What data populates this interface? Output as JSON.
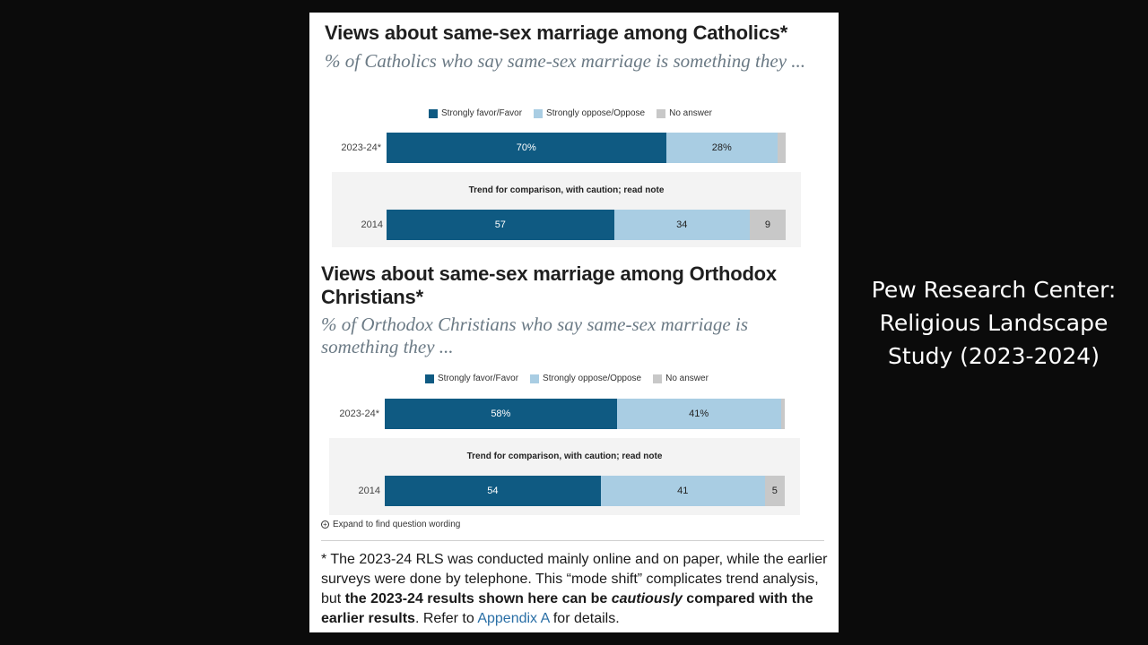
{
  "chart_data": [
    {
      "type": "bar",
      "orientation": "horizontal-stacked",
      "title": "Views about same-sex marriage among Catholics*",
      "subtitle": "% of Catholics who say same-sex marriage is something they ...",
      "legend": [
        "Strongly favor/Favor",
        "Strongly oppose/Oppose",
        "No answer"
      ],
      "trend_note": "Trend for comparison, with caution; read note",
      "categories": [
        "2023-24*",
        "2014"
      ],
      "series": [
        {
          "name": "Strongly favor/Favor",
          "values": [
            70,
            57
          ],
          "labels": [
            "70%",
            "57"
          ]
        },
        {
          "name": "Strongly oppose/Oppose",
          "values": [
            28,
            34
          ],
          "labels": [
            "28%",
            "34"
          ]
        },
        {
          "name": "No answer",
          "values": [
            2,
            9
          ],
          "labels": [
            "",
            "9"
          ]
        }
      ]
    },
    {
      "type": "bar",
      "orientation": "horizontal-stacked",
      "title": "Views about same-sex marriage among Orthodox Christians*",
      "subtitle": "% of Orthodox Christians who say same-sex marriage is something they ...",
      "legend": [
        "Strongly favor/Favor",
        "Strongly oppose/Oppose",
        "No answer"
      ],
      "trend_note": "Trend for comparison, with caution; read note",
      "categories": [
        "2023-24*",
        "2014"
      ],
      "series": [
        {
          "name": "Strongly favor/Favor",
          "values": [
            58,
            54
          ],
          "labels": [
            "58%",
            "54"
          ]
        },
        {
          "name": "Strongly oppose/Oppose",
          "values": [
            41,
            41
          ],
          "labels": [
            "41%",
            "41"
          ]
        },
        {
          "name": "No answer",
          "values": [
            1,
            5
          ],
          "labels": [
            "",
            "5"
          ]
        }
      ]
    }
  ],
  "colors": {
    "favor": "#0f5a82",
    "oppose": "#a9cde3",
    "no_answer": "#c8c8c8"
  },
  "expand_text": "Expand to find question wording",
  "note": {
    "part1": "* The 2023-24 RLS was conducted mainly online and on paper, while the earlier surveys were done by telephone. This “mode shift” complicates trend analysis, but ",
    "bold1": "the 2023-24 results shown here can be ",
    "bold_italic": "cautiously",
    "bold2": " compared with the earlier results",
    "part2": ". Refer to ",
    "link": "Appendix A",
    "part3": " for details."
  },
  "side_caption": "Pew Research Center: Religious Landscape Study (2023-2024)"
}
